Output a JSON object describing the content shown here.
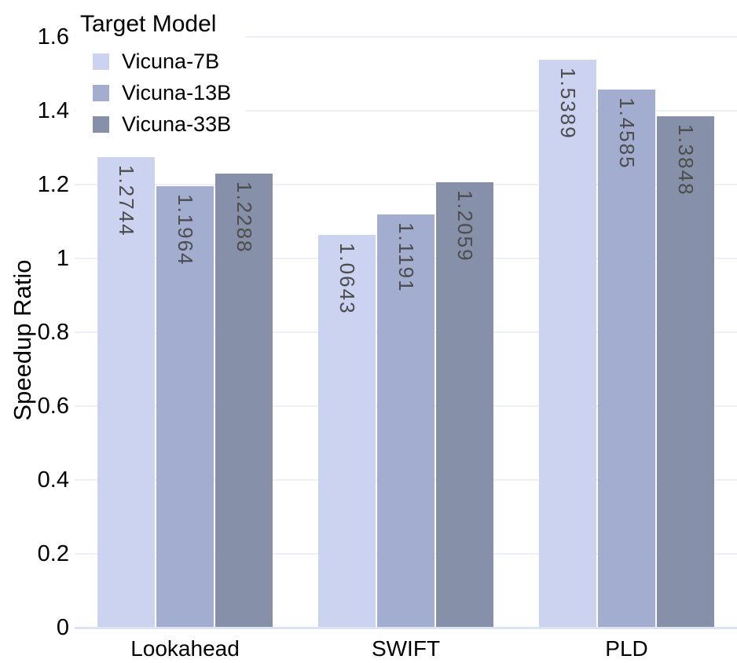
{
  "chart_data": {
    "type": "bar",
    "title": "",
    "xlabel": "",
    "ylabel": "Speedup Ratio",
    "legend_title": "Target Model",
    "legend_position": "upper-left",
    "grid": true,
    "ylim": [
      0,
      1.6
    ],
    "yticks": [
      0,
      0.2,
      0.4,
      0.6,
      0.8,
      1,
      1.2,
      1.4,
      1.6
    ],
    "ytick_labels": [
      "0",
      "0.2",
      "0.4",
      "0.6",
      "0.8",
      "1",
      "1.2",
      "1.4",
      "1.6"
    ],
    "categories": [
      "Lookahead",
      "SWIFT",
      "PLD"
    ],
    "series": [
      {
        "name": "Vicuna-7B",
        "color": "#cbd3f0",
        "values": [
          1.2744,
          1.0643,
          1.5389
        ],
        "labels": [
          "1.2744",
          "1.0643",
          "1.5389"
        ]
      },
      {
        "name": "Vicuna-13B",
        "color": "#a3adcf",
        "values": [
          1.1964,
          1.1191,
          1.4585
        ],
        "labels": [
          "1.1964",
          "1.1191",
          "1.4585"
        ]
      },
      {
        "name": "Vicuna-33B",
        "color": "#8690a9",
        "values": [
          1.2288,
          1.2059,
          1.3848
        ],
        "labels": [
          "1.2288",
          "1.2059",
          "1.3848"
        ]
      }
    ],
    "colors": {
      "gridline": "#edf0f9",
      "baseline": "#dce3f3",
      "bar_value_label": "#4d4d4d",
      "tick_text": "#000000"
    }
  }
}
